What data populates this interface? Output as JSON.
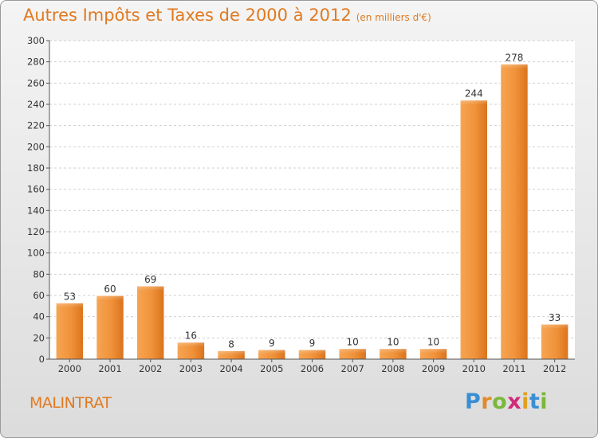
{
  "header": {
    "title": "Autres Impôts et Taxes de 2000 à 2012",
    "subtitle": "(en milliers d'€)"
  },
  "footer": {
    "commune": "MALINTRAT"
  },
  "logo": {
    "letters": [
      "P",
      "r",
      "o",
      "x",
      "i",
      "t",
      "i"
    ],
    "colors": [
      "#3a8fd4",
      "#e08a2a",
      "#7ab83a",
      "#d02a7a",
      "#e0a020",
      "#3a8fd4",
      "#7ab83a"
    ]
  },
  "chart_data": {
    "type": "bar",
    "title": "Autres Impôts et Taxes de 2000 à 2012",
    "subtitle": "(en milliers d'€)",
    "categories": [
      "2000",
      "2001",
      "2002",
      "2003",
      "2004",
      "2005",
      "2006",
      "2007",
      "2008",
      "2009",
      "2010",
      "2011",
      "2012"
    ],
    "values": [
      53,
      60,
      69,
      16,
      8,
      9,
      9,
      10,
      10,
      10,
      244,
      278,
      33
    ],
    "data_labels": [
      "53",
      "60",
      "69",
      "16",
      "8",
      "9",
      "9",
      "10",
      "10",
      "10",
      "244",
      "278",
      "33"
    ],
    "ylim": [
      0,
      300
    ],
    "yticks": [
      "0",
      "20",
      "40",
      "60",
      "80",
      "100",
      "120",
      "140",
      "160",
      "180",
      "200",
      "220",
      "240",
      "260",
      "280",
      "300"
    ],
    "grid": true,
    "bar_color": "#f0923a",
    "xlabel": "",
    "ylabel": ""
  }
}
